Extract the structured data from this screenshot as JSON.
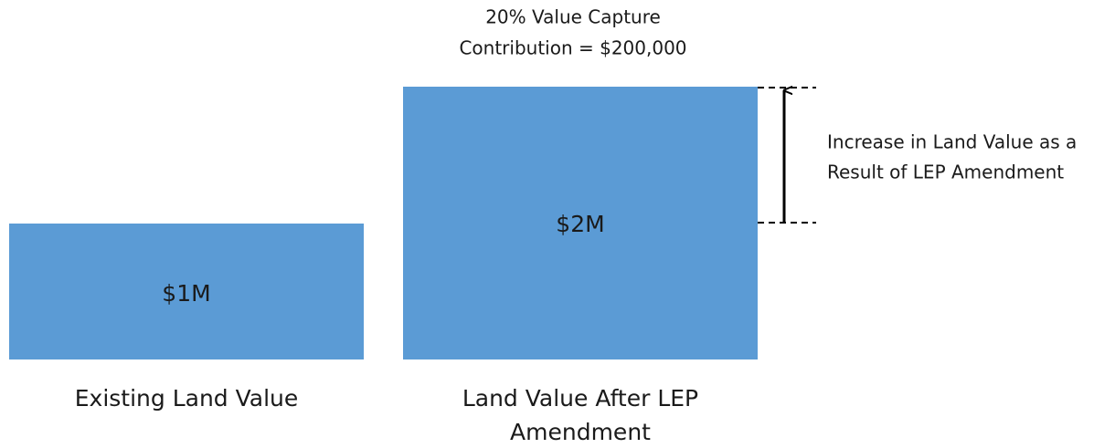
{
  "boxes": [
    {
      "label": "$1M",
      "caption": [
        "Existing Land Value"
      ]
    },
    {
      "label": "$2M",
      "caption": [
        "Land Value After LEP",
        "Amendment"
      ]
    }
  ],
  "top_annotation": [
    "20% Value Capture",
    "Contribution = $200,000"
  ],
  "side_annotation": [
    "Increase in Land Value as a",
    "Result of LEP Amendment"
  ]
}
